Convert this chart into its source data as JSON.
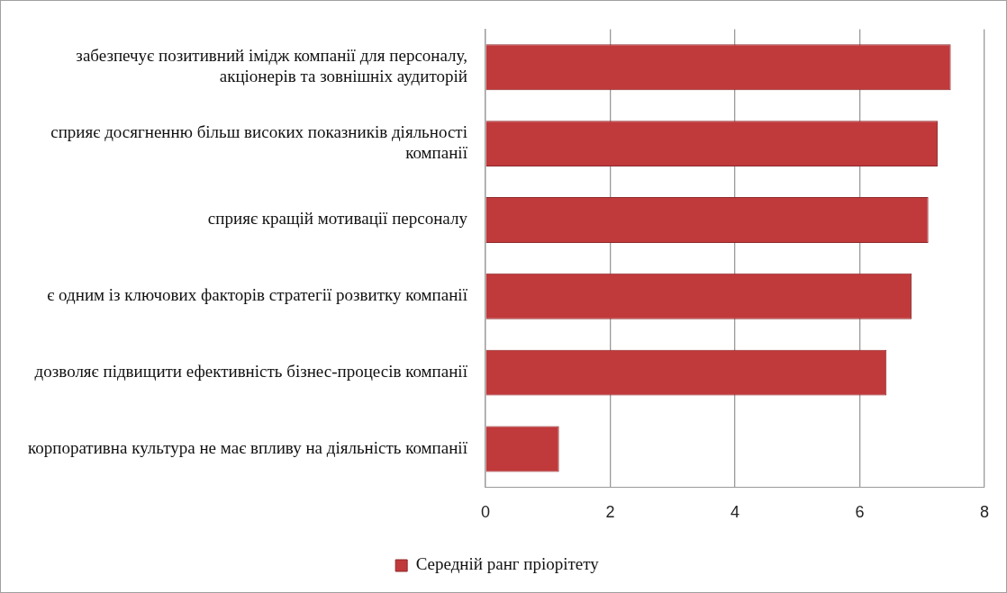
{
  "chart_data": {
    "type": "bar",
    "orientation": "horizontal",
    "categories": [
      "забезпечує позитивний імідж компанії для персоналу, акціонерів та зовнішніх аудиторій",
      "сприяє досягненню більш високих показників діяльності компанії",
      "сприяє кращій мотивації персоналу",
      "є одним із ключових факторів стратегії розвитку компанії",
      "дозволяє підвищити ефективність бізнес-процесів компанії",
      "корпоративна культура не має впливу на діяльність компанії"
    ],
    "series": [
      {
        "name": "Середній ранг пріорітету",
        "color": "#c0393b",
        "values": [
          7.46,
          7.25,
          7.1,
          6.83,
          6.43,
          1.18
        ]
      }
    ],
    "xlim": [
      0,
      8
    ],
    "xticks": [
      0,
      2,
      4,
      6,
      8
    ],
    "grid": "x",
    "legend": "bottom"
  }
}
